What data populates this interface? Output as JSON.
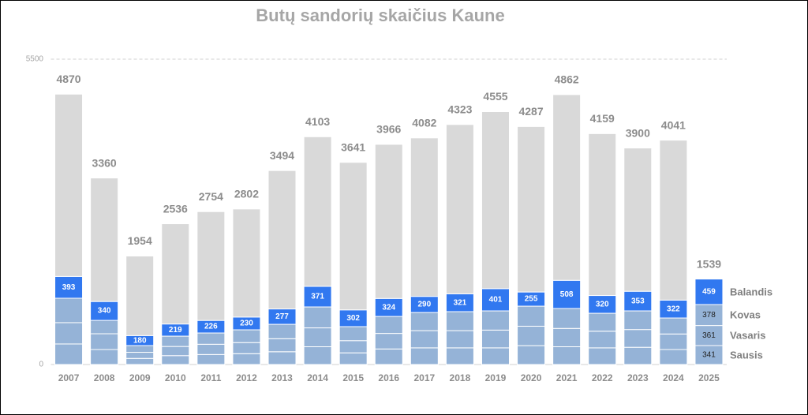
{
  "chart_data": {
    "type": "bar",
    "stacked": true,
    "title": "Butų sandorių skaičius Kaune",
    "categories": [
      "2007",
      "2008",
      "2009",
      "2010",
      "2011",
      "2012",
      "2013",
      "2014",
      "2015",
      "2016",
      "2017",
      "2018",
      "2019",
      "2020",
      "2021",
      "2022",
      "2023",
      "2024",
      "2025"
    ],
    "series": [
      {
        "name": "Sausis",
        "color": "#95b3d7",
        "show_labels": "last",
        "values": [
          370,
          270,
          110,
          160,
          180,
          195,
          230,
          320,
          210,
          280,
          300,
          300,
          300,
          340,
          320,
          300,
          310,
          270,
          341
        ]
      },
      {
        "name": "Vasaris",
        "color": "#95b3d7",
        "show_labels": "last",
        "values": [
          384,
          284,
          110,
          165,
          185,
          200,
          235,
          340,
          220,
          280,
          310,
          310,
          320,
          350,
          330,
          300,
          320,
          280,
          361
        ]
      },
      {
        "name": "Kovas",
        "color": "#95b3d7",
        "show_labels": "last",
        "values": [
          440,
          241,
          121,
          186,
          203,
          230,
          259,
          377,
          252,
          306,
          327,
          342,
          346,
          361,
          359,
          323,
          336,
          288,
          378
        ]
      },
      {
        "name": "Balandis",
        "color": "#3178f0",
        "show_labels": "all",
        "values": [
          393,
          340,
          180,
          219,
          226,
          230,
          277,
          371,
          302,
          324,
          290,
          321,
          401,
          255,
          508,
          320,
          353,
          322,
          459
        ]
      },
      {
        "color": "#d9d9d9",
        "values": [
          3283,
          2225,
          1433,
          1806,
          1960,
          1947,
          2493,
          2695,
          2657,
          2776,
          2855,
          3050,
          3188,
          2981,
          3345,
          2916,
          2581,
          2881,
          0
        ]
      }
    ],
    "totals": [
      4870,
      3360,
      1954,
      2536,
      2754,
      2802,
      3494,
      4103,
      3641,
      3966,
      4082,
      4323,
      4555,
      4287,
      4862,
      4159,
      3900,
      4041,
      1539
    ],
    "ylim": [
      0,
      5500
    ],
    "yticks": [
      0,
      5500
    ],
    "grid": true
  }
}
